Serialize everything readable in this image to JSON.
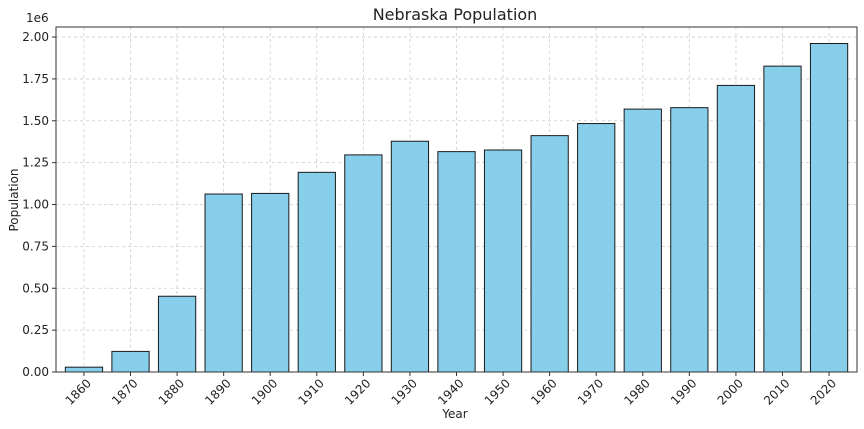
{
  "chart_data": {
    "type": "bar",
    "title": "Nebraska Population",
    "xlabel": "Year",
    "ylabel": "Population",
    "y_offset_label": "1e6",
    "categories": [
      "1860",
      "1870",
      "1880",
      "1890",
      "1900",
      "1910",
      "1920",
      "1930",
      "1940",
      "1950",
      "1960",
      "1970",
      "1980",
      "1990",
      "2000",
      "2010",
      "2020"
    ],
    "values": [
      28841,
      122993,
      452402,
      1062656,
      1066300,
      1192214,
      1296372,
      1377963,
      1315834,
      1325510,
      1411330,
      1483493,
      1569825,
      1578385,
      1711263,
      1826341,
      1961504
    ],
    "ylim": [
      0,
      2060000
    ],
    "y_ticks": [
      0,
      250000,
      500000,
      750000,
      1000000,
      1250000,
      1500000,
      1750000,
      2000000
    ],
    "y_tick_labels": [
      "0.00",
      "0.25",
      "0.50",
      "0.75",
      "1.00",
      "1.25",
      "1.50",
      "1.75",
      "2.00"
    ],
    "x_tick_rotation": 45,
    "grid": true,
    "bar_color": "#87ceeb",
    "edge_color": "#1a1a1a"
  }
}
